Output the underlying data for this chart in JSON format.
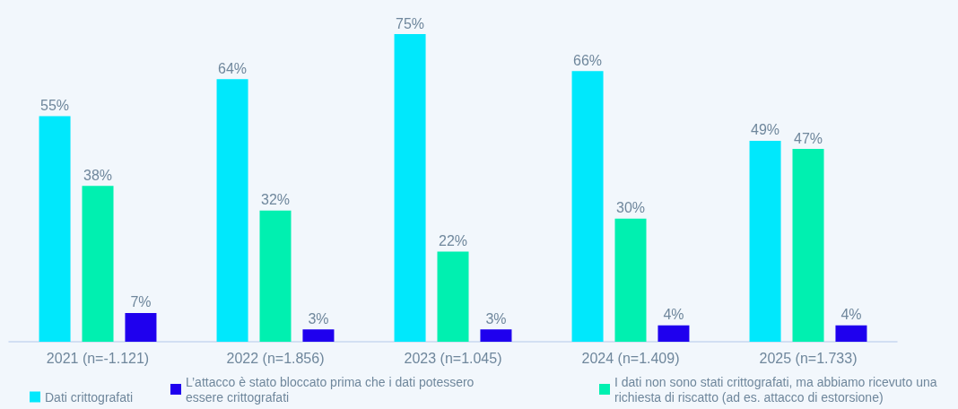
{
  "chart_data": {
    "type": "bar",
    "categories": [
      "2021 (n=-1.121)",
      "2022 (n=1.856)",
      "2023 (n=1.045)",
      "2024 (n=1.409)",
      "2025 (n=1.733)"
    ],
    "series": [
      {
        "name": "Dati crittografati",
        "color": "#00e8fc",
        "values": [
          55,
          64,
          75,
          66,
          49
        ],
        "value_labels": [
          "55%",
          "64%",
          "75%",
          "66%",
          "49%"
        ]
      },
      {
        "name": "I dati non sono stati crittografati, ma abbiamo ricevuto una richiesta di riscatto (ad es. attacco di estorsione)",
        "color": "#00f0b0",
        "values": [
          38,
          32,
          22,
          30,
          47
        ],
        "value_labels": [
          "38%",
          "32%",
          "22%",
          "30%",
          "47%"
        ]
      },
      {
        "name": "L’attacco è stato bloccato prima che i dati potessero essere crittografati",
        "color": "#1f00ee",
        "values": [
          7,
          3,
          3,
          4,
          4
        ],
        "value_labels": [
          "7%",
          "3%",
          "3%",
          "4%",
          "4%"
        ]
      }
    ],
    "grid": false,
    "legend": "bottom"
  }
}
